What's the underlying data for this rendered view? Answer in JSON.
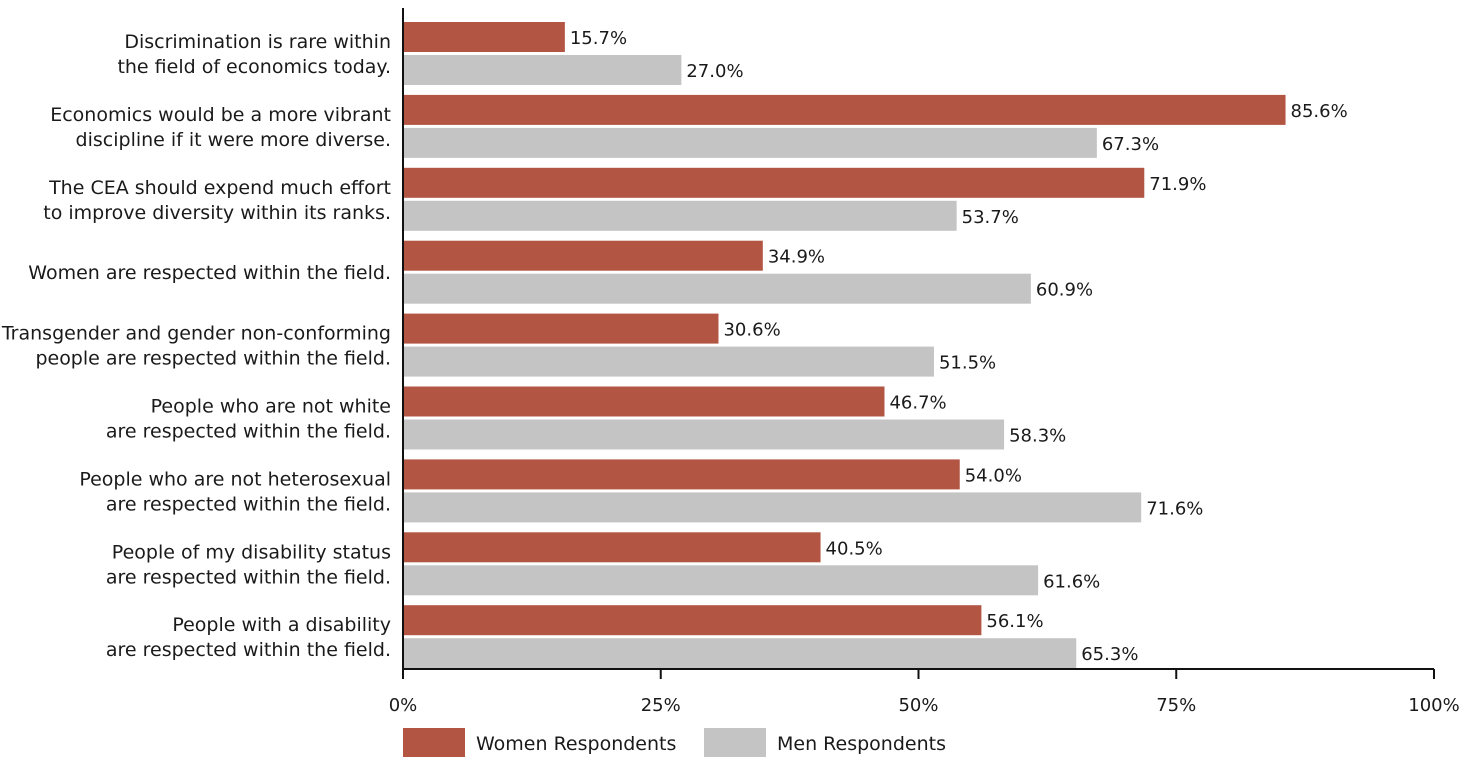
{
  "chart_data": {
    "type": "bar",
    "orientation": "horizontal",
    "categories": [
      [
        "Discrimination is rare within",
        "the field of economics today."
      ],
      [
        "Economics would be a more vibrant",
        "discipline if it were more diverse."
      ],
      [
        "The CEA should expend much effort",
        "to improve diversity within its ranks."
      ],
      [
        "Women are respected within the field."
      ],
      [
        "Transgender and gender non-conforming",
        "people are respected within the field."
      ],
      [
        "People who are not white",
        "are respected within the field."
      ],
      [
        "People who are not heterosexual",
        "are respected within the field."
      ],
      [
        "People of my disability status",
        "are respected within the field."
      ],
      [
        "People with a disability",
        "are respected within the field."
      ]
    ],
    "series": [
      {
        "name": "Women Respondents",
        "color": "#b35543",
        "values": [
          15.7,
          85.6,
          71.9,
          34.9,
          30.6,
          46.7,
          54.0,
          40.5,
          56.1
        ],
        "labels": [
          "15.7%",
          "85.6%",
          "71.9%",
          "34.9%",
          "30.6%",
          "46.7%",
          "54.0%",
          "40.5%",
          "56.1%"
        ]
      },
      {
        "name": "Men Respondents",
        "color": "#c4c4c4",
        "values": [
          27.0,
          67.3,
          53.7,
          60.9,
          51.5,
          58.3,
          71.6,
          61.6,
          65.3
        ],
        "labels": [
          "27.0%",
          "67.3%",
          "53.7%",
          "60.9%",
          "51.5%",
          "58.3%",
          "71.6%",
          "61.6%",
          "65.3%"
        ]
      }
    ],
    "xlim": [
      0,
      100
    ],
    "xticks": [
      0,
      25,
      50,
      75,
      100
    ],
    "xtick_labels": [
      "0%",
      "25%",
      "50%",
      "75%",
      "100%"
    ],
    "grid": false,
    "legend_position": "bottom-left"
  }
}
